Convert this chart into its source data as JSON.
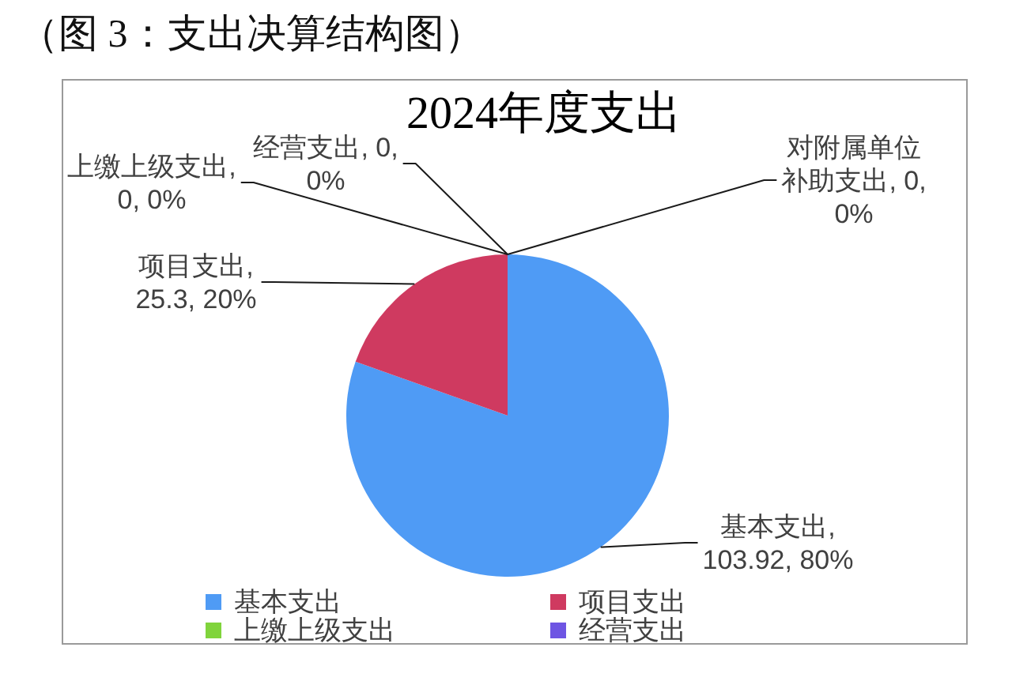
{
  "chart_data": {
    "type": "pie",
    "title": "2024年度支出",
    "categories": [
      "基本支出",
      "项目支出",
      "上缴上级支出",
      "经营支出",
      "对附属单位补助支出"
    ],
    "values": [
      103.92,
      25.3,
      0,
      0,
      0
    ],
    "colors": [
      "#4f9bf5",
      "#cf3a60",
      "#80d43c",
      "#6e55e3",
      null
    ],
    "value_labels": [
      ", 103.92, 80%",
      ", 25.3, 20%",
      ", 0, 0%",
      ", 0, 0%",
      ", 0, 0%"
    ],
    "legend": "bottom",
    "annotations": [
      "（图 3：支出决算结构图）"
    ]
  }
}
